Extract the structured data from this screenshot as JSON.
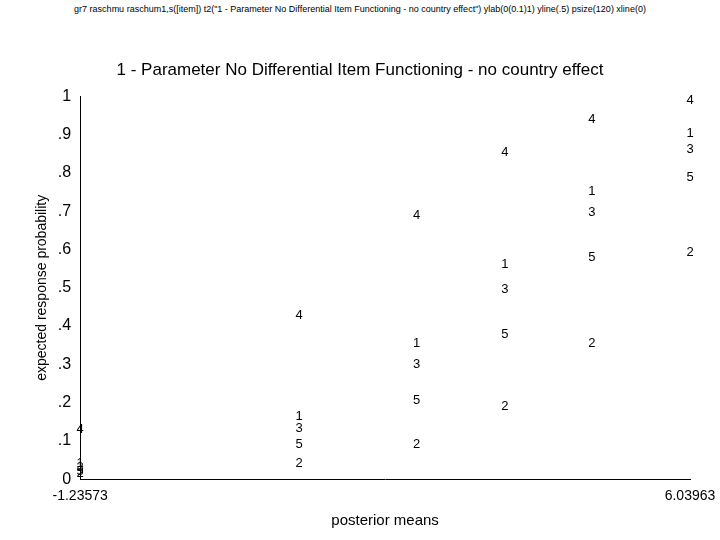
{
  "chart_data": {
    "type": "scatter",
    "annotations": [
      "gr7  raschmu raschum1,s([item]) t2(\"1 - Parameter No Differential Item Functioning - no country effect\") ylab(0(0.1)1) yline(.5) psize(120)  xline(0)"
    ],
    "title": "1 - Parameter No Differential Item Functioning - no country effect",
    "x_label": "posterior means",
    "y_label": "expected response probability",
    "x": [
      -1.23573,
      1.376,
      2.779,
      3.831,
      4.87,
      6.03963
    ],
    "series": [
      {
        "name": "1",
        "color": "#000000",
        "values": [
          0.04,
          0.165,
          0.355,
          0.561,
          0.753,
          0.902
        ]
      },
      {
        "name": "2",
        "color": "#000000",
        "values": [
          0.015,
          0.041,
          0.092,
          0.19,
          0.355,
          0.593
        ]
      },
      {
        "name": "3",
        "color": "#000000",
        "values": [
          0.03,
          0.133,
          0.301,
          0.496,
          0.696,
          0.862
        ]
      },
      {
        "name": "4",
        "color": "#000000",
        "values": [
          0.13,
          0.428,
          0.688,
          0.854,
          0.94,
          0.989
        ]
      },
      {
        "name": "5",
        "color": "#000000",
        "values": [
          0.02,
          0.092,
          0.206,
          0.377,
          0.58,
          0.789
        ]
      }
    ],
    "marker": "label",
    "xlim": [
      -1.23573,
      6.03963
    ],
    "xticks": [
      -1.23573,
      6.03963
    ],
    "ylim": [
      0,
      1
    ],
    "yticks": [
      0,
      {
        "value": 0.1,
        "label": ".1"
      },
      {
        "value": 0.2,
        "label": ".2"
      },
      {
        "value": 0.3,
        "label": ".3"
      },
      {
        "value": 0.4,
        "label": ".4"
      },
      {
        "value": 0.5,
        "label": ".5"
      },
      {
        "value": 0.6,
        "label": ".6"
      },
      {
        "value": 0.7,
        "label": ".7"
      },
      {
        "value": 0.8,
        "label": ".8"
      },
      {
        "value": 0.9,
        "label": ".9"
      },
      1
    ],
    "grid": false
  }
}
